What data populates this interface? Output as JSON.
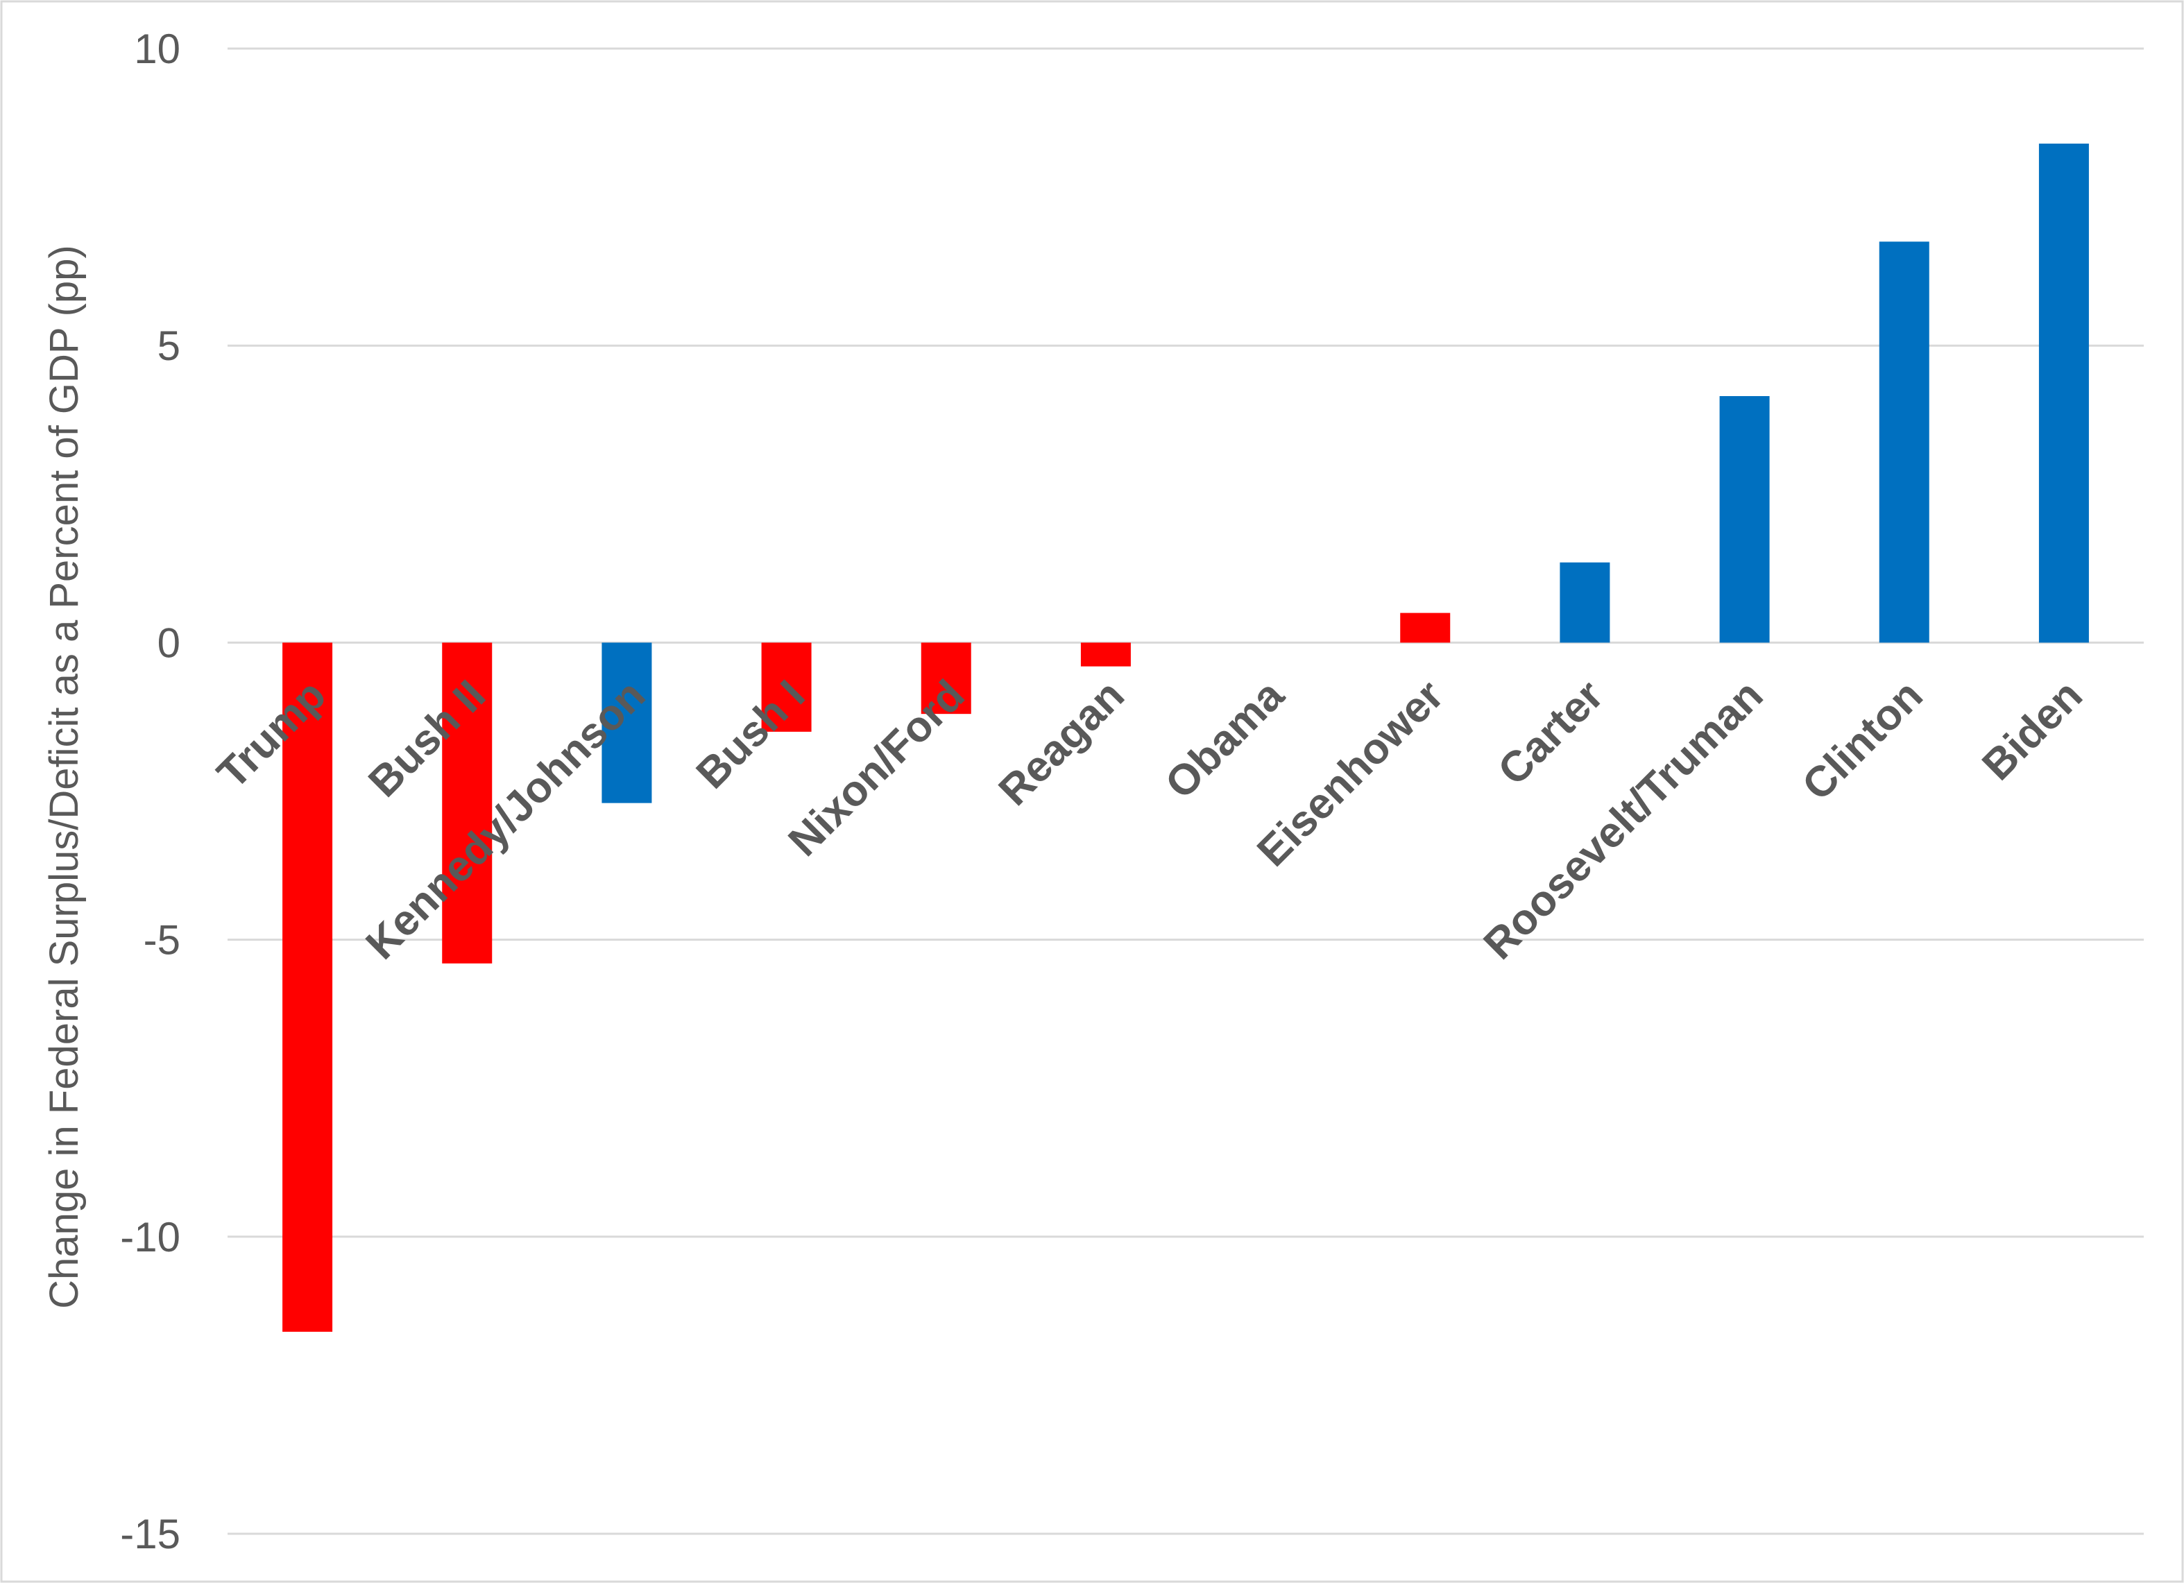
{
  "chart_data": {
    "type": "bar",
    "title": "",
    "xlabel": "",
    "ylabel": "Change in Federal Surplus/Deficit as a Percent of GDP (pp)",
    "ylim": [
      -15,
      10
    ],
    "yticks": [
      10,
      5,
      0,
      -5,
      -10,
      -15
    ],
    "grid": true,
    "legend": "none",
    "categories": [
      "Trump",
      "Bush II",
      "Kennedy/Johnson",
      "Bush I",
      "Nixon/Ford",
      "Reagan",
      "Obama",
      "Eisenhower",
      "Carter",
      "Roosevelt/Truman",
      "Clinton",
      "Biden"
    ],
    "values": [
      -11.6,
      -5.4,
      -2.7,
      -1.5,
      -1.2,
      -0.4,
      0.0,
      0.5,
      1.35,
      4.15,
      6.75,
      8.4
    ],
    "party_colors": [
      "#ff0000",
      "#ff0000",
      "#0070c0",
      "#ff0000",
      "#ff0000",
      "#ff0000",
      "#0070c0",
      "#ff0000",
      "#0070c0",
      "#0070c0",
      "#0070c0",
      "#0070c0"
    ]
  }
}
